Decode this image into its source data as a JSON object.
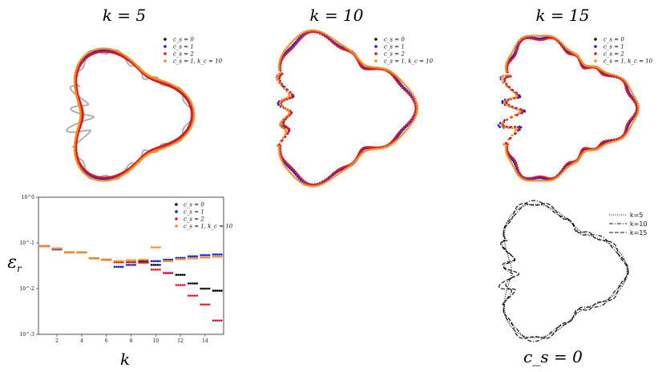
{
  "titles": {
    "k5": "k = 5",
    "k10": "k = 10",
    "k15": "k = 15",
    "cs0": "c_s = 0"
  },
  "legend_shapes": [
    {
      "label": "c_s = 0",
      "color": "#000000"
    },
    {
      "label": "c_s = 1",
      "color": "#0b1cf0"
    },
    {
      "label": "c_s = 2",
      "color": "#e8141c"
    },
    {
      "label": "c_s = 1, k_c = 10",
      "color": "#ff8c1a"
    }
  ],
  "legend_compare": [
    "k=5",
    "k=10",
    "k=15"
  ],
  "chart_data": [
    {
      "type": "scatter",
      "xlabel": "k",
      "ylabel": "ε_r",
      "yscale": "log",
      "ylim": [
        0.001,
        1
      ],
      "xlim": [
        0.5,
        15.5
      ],
      "xticks": [
        2,
        4,
        6,
        8,
        10,
        12,
        14
      ],
      "yticks": [
        "10^0",
        "10^-1",
        "10^-2",
        "10^-3"
      ],
      "legend_position": "upper right",
      "series": [
        {
          "name": "c_s = 0",
          "color": "#000000",
          "x": [
            1,
            2,
            3,
            4,
            5,
            6,
            7,
            8,
            9,
            10,
            11,
            12,
            13,
            14,
            15
          ],
          "y": [
            0.085,
            0.075,
            0.062,
            0.062,
            0.046,
            0.043,
            0.038,
            0.038,
            0.04,
            0.033,
            0.022,
            0.02,
            0.013,
            0.01,
            0.009
          ]
        },
        {
          "name": "c_s = 1",
          "color": "#0b1cf0",
          "x": [
            1,
            2,
            3,
            4,
            5,
            6,
            7,
            8,
            9,
            10,
            11,
            12,
            13,
            14,
            15
          ],
          "y": [
            0.085,
            0.072,
            0.062,
            0.062,
            0.046,
            0.043,
            0.03,
            0.033,
            0.038,
            0.04,
            0.043,
            0.047,
            0.051,
            0.054,
            0.056
          ]
        },
        {
          "name": "c_s = 2",
          "color": "#e8141c",
          "x": [
            1,
            2,
            3,
            4,
            5,
            6,
            7,
            8,
            9,
            10,
            11,
            12,
            13,
            14,
            15
          ],
          "y": [
            0.085,
            0.075,
            0.062,
            0.062,
            0.046,
            0.043,
            0.038,
            0.038,
            0.037,
            0.026,
            0.022,
            0.012,
            0.007,
            0.0045,
            0.002
          ]
        },
        {
          "name": "c_s = 1, k_c = 10",
          "color": "#ff8c1a",
          "x": [
            1,
            2,
            3,
            4,
            5,
            6,
            7,
            8,
            9,
            10,
            11,
            12,
            13,
            14,
            15
          ],
          "y": [
            0.085,
            0.075,
            0.062,
            0.062,
            0.046,
            0.043,
            0.04,
            0.042,
            0.043,
            0.08,
            0.04,
            0.044,
            0.046,
            0.048,
            0.05
          ]
        }
      ]
    }
  ]
}
